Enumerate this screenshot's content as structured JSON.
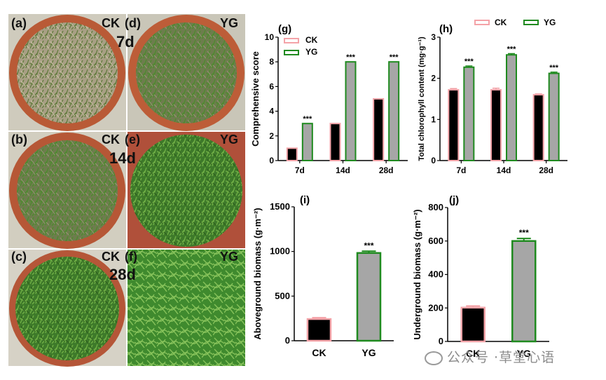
{
  "photo_panels": [
    {
      "panel": "(a)",
      "group": "CK",
      "day": "7d"
    },
    {
      "panel": "(d)",
      "group": "YG",
      "day": ""
    },
    {
      "panel": "(b)",
      "group": "CK",
      "day": "14d"
    },
    {
      "panel": "(e)",
      "group": "YG",
      "day": ""
    },
    {
      "panel": "(c)",
      "group": "CK",
      "day": "28d"
    },
    {
      "panel": "(f)",
      "group": "YG",
      "day": ""
    }
  ],
  "colors": {
    "ck_fill": "#000000",
    "ck_edge": "#f4a3a8",
    "yg_fill": "#a6a6a6",
    "yg_edge": "#1f8a1f"
  },
  "watermark": "公众号 ·草堂心语",
  "chart_data": [
    {
      "id": "g",
      "panel_label": "(g)",
      "type": "bar",
      "categories": [
        "7d",
        "14d",
        "28d"
      ],
      "ylabel": "Comprehensive score",
      "ylim": [
        0,
        10
      ],
      "yticks": [
        0,
        2,
        4,
        6,
        8,
        10
      ],
      "legend": "top-left",
      "series": [
        {
          "name": "CK",
          "values": [
            1,
            3,
            5
          ]
        },
        {
          "name": "YG",
          "values": [
            3,
            8,
            8
          ],
          "sig": [
            "***",
            "***",
            "***"
          ]
        }
      ]
    },
    {
      "id": "h",
      "panel_label": "(h)",
      "type": "bar",
      "categories": [
        "7d",
        "14d",
        "28d"
      ],
      "ylabel": "Total chlorophyll content (mg·g⁻¹)",
      "ylim": [
        0,
        3
      ],
      "yticks": [
        0,
        1,
        2,
        3
      ],
      "legend": "top",
      "series": [
        {
          "name": "CK",
          "values": [
            1.72,
            1.72,
            1.6
          ],
          "err": [
            0.03,
            0.04,
            0.02
          ]
        },
        {
          "name": "YG",
          "values": [
            2.27,
            2.57,
            2.12
          ],
          "err": [
            0.03,
            0.03,
            0.03
          ],
          "sig": [
            "***",
            "***",
            "***"
          ]
        }
      ]
    },
    {
      "id": "i",
      "panel_label": "(i)",
      "type": "bar",
      "categories": [
        "CK",
        "YG"
      ],
      "values": [
        243,
        983
      ],
      "err": [
        15,
        20
      ],
      "sig": [
        "",
        "***"
      ],
      "ylabel": "Aboveground biomass (g·m⁻²)",
      "ylim": [
        0,
        1500
      ],
      "yticks": [
        0,
        500,
        1000,
        1500
      ]
    },
    {
      "id": "j",
      "panel_label": "(j)",
      "type": "bar",
      "categories": [
        "CK",
        "YG"
      ],
      "values": [
        202,
        600
      ],
      "err": [
        10,
        15
      ],
      "sig": [
        "",
        "***"
      ],
      "ylabel": "Underground biomass (g·m⁻²)",
      "ylim": [
        0,
        800
      ],
      "yticks": [
        0,
        200,
        400,
        600,
        800
      ]
    }
  ]
}
